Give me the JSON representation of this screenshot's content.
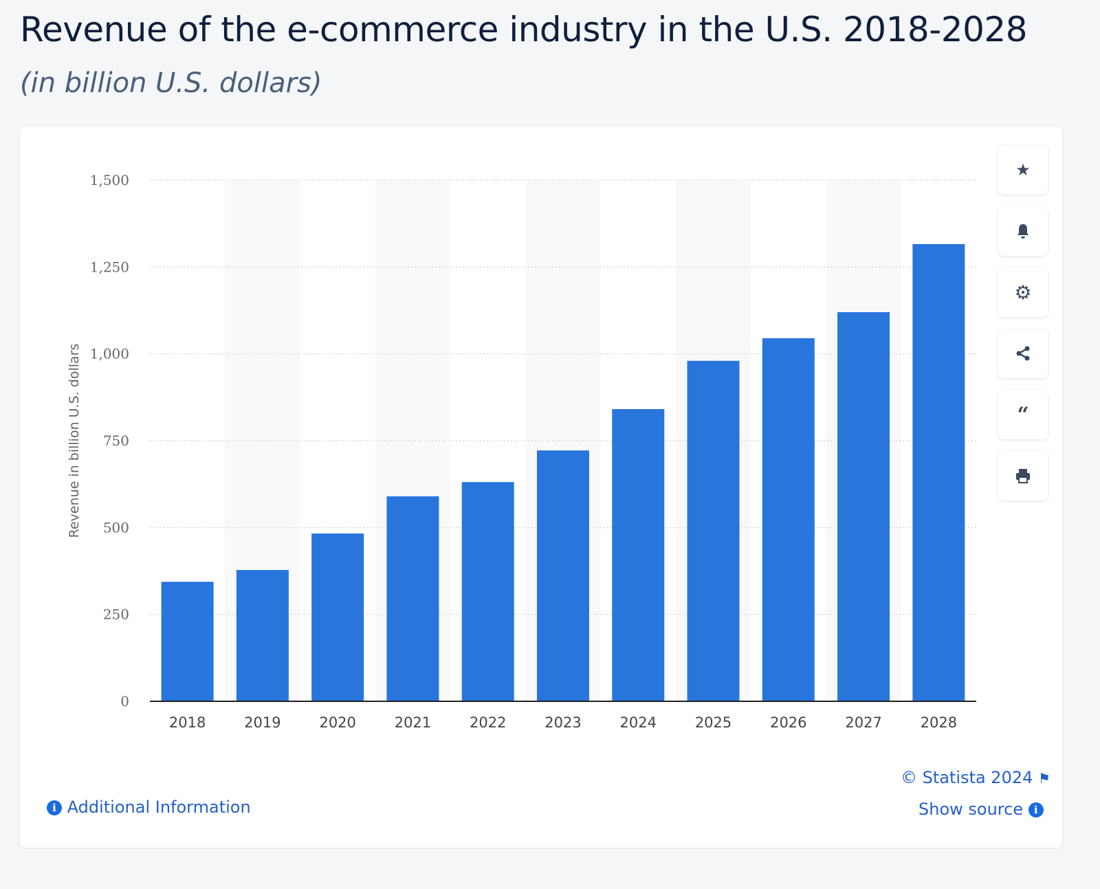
{
  "title": "Revenue of the e-commerce industry in the U.S. 2018-2028",
  "subtitle": "(in billion U.S. dollars)",
  "toolbar": {
    "icons": [
      "star-icon",
      "bell-icon",
      "gear-icon",
      "share-icon",
      "quote-icon",
      "print-icon"
    ]
  },
  "footer": {
    "copyright": "© Statista 2024",
    "show_source": "Show source",
    "additional_info": "Additional Information"
  },
  "colors": {
    "bar": "#2875dc",
    "link": "#2460c9"
  },
  "chart_data": {
    "type": "bar",
    "categories": [
      "2018",
      "2019",
      "2020",
      "2021",
      "2022",
      "2023",
      "2024",
      "2025",
      "2026",
      "2027",
      "2028"
    ],
    "values": [
      344,
      378,
      483,
      590,
      631,
      722,
      841,
      980,
      1045,
      1120,
      1316
    ],
    "ylabel": "Revenue in billion U.S. dollars",
    "xlabel": "",
    "ylim": [
      0,
      1500
    ],
    "yticks": [
      0,
      250,
      500,
      750,
      1000,
      1250,
      1500
    ],
    "ytick_labels": [
      "0",
      "250",
      "500",
      "750",
      "1,000",
      "1,250",
      "1,500"
    ],
    "grid": true
  }
}
